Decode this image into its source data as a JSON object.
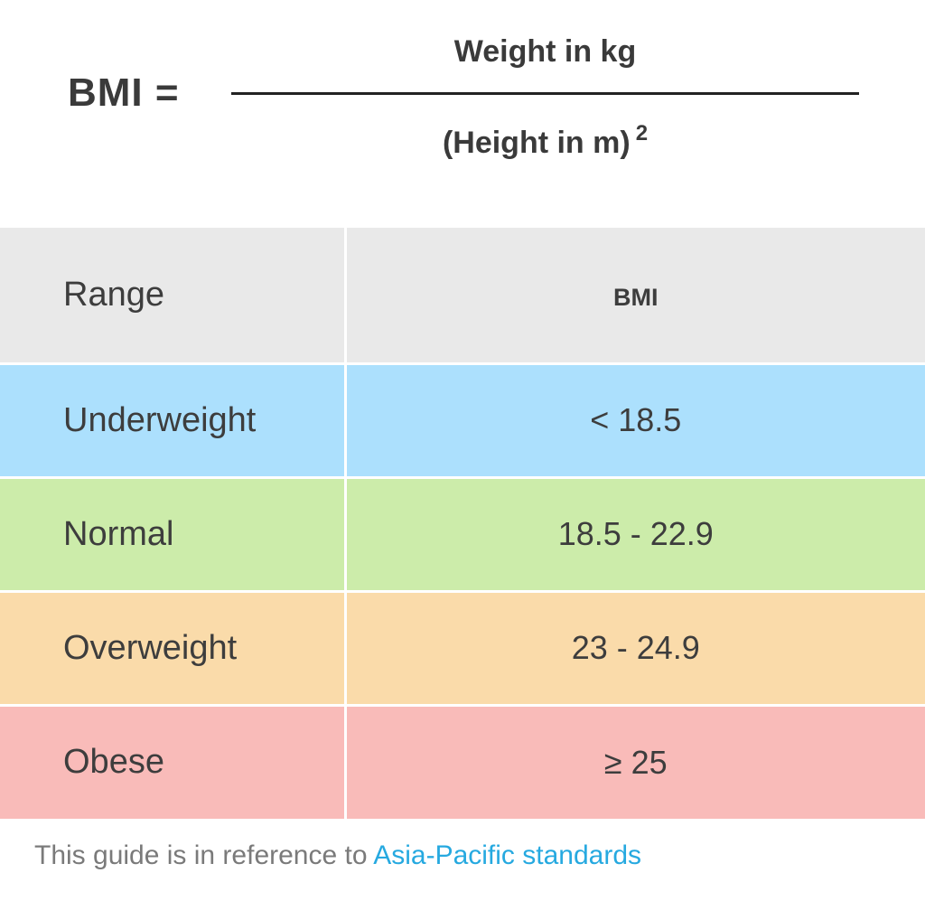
{
  "formula": {
    "lhs": "BMI =",
    "numerator": "Weight in kg",
    "denominator": "(Height in m)",
    "exponent": "2"
  },
  "table": {
    "headers": {
      "range": "Range",
      "bmi": "BMI"
    },
    "header_color": "#e9e9e9",
    "rows": [
      {
        "range": "Underweight",
        "bmi": "< 18.5",
        "color": "#ace0fd"
      },
      {
        "range": "Normal",
        "bmi": "18.5 - 22.9",
        "color": "#ccecaa"
      },
      {
        "range": "Overweight",
        "bmi": "23 - 24.9",
        "color": "#fadbaa"
      },
      {
        "range": "Obese",
        "bmi": "≥ 25",
        "color": "#f9bbb9"
      }
    ]
  },
  "footnote": {
    "text": "This guide is in reference to ",
    "link_text": "Asia-Pacific standards",
    "link_color": "#26a9e0"
  }
}
